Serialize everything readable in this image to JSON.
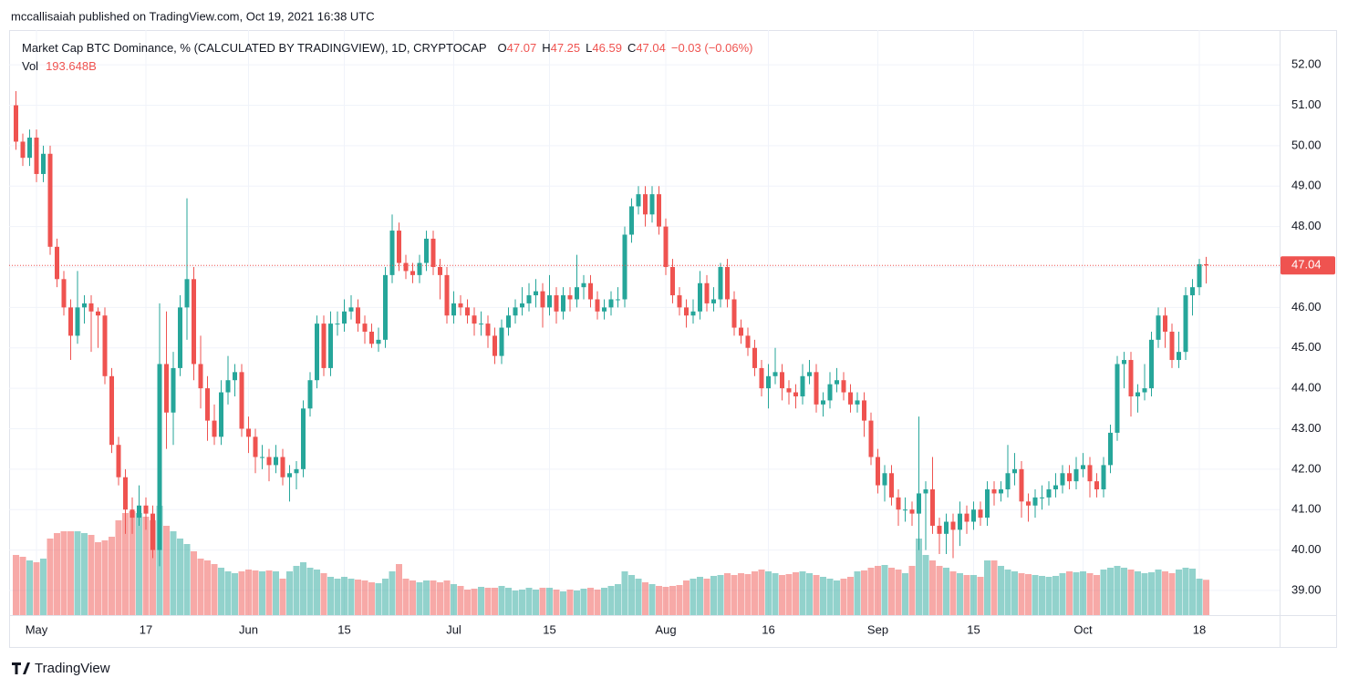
{
  "header": "mccallisaiah published on TradingView.com, Oct 19, 2021 16:38 UTC",
  "footer": "TradingView",
  "chart_data": {
    "type": "candlestick",
    "title": "Market Cap BTC Dominance, % (CALCULATED BY TRADINGVIEW), 1D, CRYPTOCAP",
    "ohlc_keys": [
      "O",
      "H",
      "L",
      "C"
    ],
    "change": "−0.03 (−0.06%)",
    "up_color": "#26a69a",
    "down_color": "#ef5350",
    "grid": true,
    "last_price_line": true,
    "xlim": [
      "2021-04-27",
      "2021-10-30"
    ],
    "ylim": [
      38.39,
      52.86
    ],
    "yticks": [
      {
        "value": 39,
        "label": "39.00"
      },
      {
        "value": 40,
        "label": "40.00"
      },
      {
        "value": 41,
        "label": "41.00"
      },
      {
        "value": 42,
        "label": "42.00"
      },
      {
        "value": 43,
        "label": "43.00"
      },
      {
        "value": 44,
        "label": "44.00"
      },
      {
        "value": 45,
        "label": "45.00"
      },
      {
        "value": 46,
        "label": "46.00"
      },
      {
        "value": 47,
        "label": "47.00"
      },
      {
        "value": 48,
        "label": "48.00"
      },
      {
        "value": 49,
        "label": "49.00"
      },
      {
        "value": 50,
        "label": "50.00"
      },
      {
        "value": 51,
        "label": "51.00"
      },
      {
        "value": 52,
        "label": "52.00"
      }
    ],
    "xticks": [
      {
        "value": "2021-05-01",
        "label": "May"
      },
      {
        "value": "2021-05-17",
        "label": "17"
      },
      {
        "value": "2021-06-01",
        "label": "Jun"
      },
      {
        "value": "2021-06-15",
        "label": "15"
      },
      {
        "value": "2021-07-01",
        "label": "Jul"
      },
      {
        "value": "2021-07-15",
        "label": "15"
      },
      {
        "value": "2021-08-01",
        "label": "Aug"
      },
      {
        "value": "2021-08-16",
        "label": "16"
      },
      {
        "value": "2021-09-01",
        "label": "Sep"
      },
      {
        "value": "2021-09-15",
        "label": "15"
      },
      {
        "value": "2021-10-01",
        "label": "Oct"
      },
      {
        "value": "2021-10-18",
        "label": "18"
      }
    ],
    "x": [
      "2021-04-28",
      "2021-04-29",
      "2021-04-30",
      "2021-05-01",
      "2021-05-02",
      "2021-05-03",
      "2021-05-04",
      "2021-05-05",
      "2021-05-06",
      "2021-05-07",
      "2021-05-08",
      "2021-05-09",
      "2021-05-10",
      "2021-05-11",
      "2021-05-12",
      "2021-05-13",
      "2021-05-14",
      "2021-05-15",
      "2021-05-16",
      "2021-05-17",
      "2021-05-18",
      "2021-05-19",
      "2021-05-20",
      "2021-05-21",
      "2021-05-22",
      "2021-05-23",
      "2021-05-24",
      "2021-05-25",
      "2021-05-26",
      "2021-05-27",
      "2021-05-28",
      "2021-05-29",
      "2021-05-30",
      "2021-05-31",
      "2021-06-01",
      "2021-06-02",
      "2021-06-03",
      "2021-06-04",
      "2021-06-05",
      "2021-06-06",
      "2021-06-07",
      "2021-06-08",
      "2021-06-09",
      "2021-06-10",
      "2021-06-11",
      "2021-06-12",
      "2021-06-13",
      "2021-06-14",
      "2021-06-15",
      "2021-06-16",
      "2021-06-17",
      "2021-06-18",
      "2021-06-19",
      "2021-06-20",
      "2021-06-21",
      "2021-06-22",
      "2021-06-23",
      "2021-06-24",
      "2021-06-25",
      "2021-06-26",
      "2021-06-27",
      "2021-06-28",
      "2021-06-29",
      "2021-06-30",
      "2021-07-01",
      "2021-07-02",
      "2021-07-03",
      "2021-07-04",
      "2021-07-05",
      "2021-07-06",
      "2021-07-07",
      "2021-07-08",
      "2021-07-09",
      "2021-07-10",
      "2021-07-11",
      "2021-07-12",
      "2021-07-13",
      "2021-07-14",
      "2021-07-15",
      "2021-07-16",
      "2021-07-17",
      "2021-07-18",
      "2021-07-19",
      "2021-07-20",
      "2021-07-21",
      "2021-07-22",
      "2021-07-23",
      "2021-07-24",
      "2021-07-25",
      "2021-07-26",
      "2021-07-27",
      "2021-07-28",
      "2021-07-29",
      "2021-07-30",
      "2021-07-31",
      "2021-08-01",
      "2021-08-02",
      "2021-08-03",
      "2021-08-04",
      "2021-08-05",
      "2021-08-06",
      "2021-08-07",
      "2021-08-08",
      "2021-08-09",
      "2021-08-10",
      "2021-08-11",
      "2021-08-12",
      "2021-08-13",
      "2021-08-14",
      "2021-08-15",
      "2021-08-16",
      "2021-08-17",
      "2021-08-18",
      "2021-08-19",
      "2021-08-20",
      "2021-08-21",
      "2021-08-22",
      "2021-08-23",
      "2021-08-24",
      "2021-08-25",
      "2021-08-26",
      "2021-08-27",
      "2021-08-28",
      "2021-08-29",
      "2021-08-30",
      "2021-08-31",
      "2021-09-01",
      "2021-09-02",
      "2021-09-03",
      "2021-09-04",
      "2021-09-05",
      "2021-09-06",
      "2021-09-07",
      "2021-09-08",
      "2021-09-09",
      "2021-09-10",
      "2021-09-11",
      "2021-09-12",
      "2021-09-13",
      "2021-09-14",
      "2021-09-15",
      "2021-09-16",
      "2021-09-17",
      "2021-09-18",
      "2021-09-19",
      "2021-09-20",
      "2021-09-21",
      "2021-09-22",
      "2021-09-23",
      "2021-09-24",
      "2021-09-25",
      "2021-09-26",
      "2021-09-27",
      "2021-09-28",
      "2021-09-29",
      "2021-09-30",
      "2021-10-01",
      "2021-10-02",
      "2021-10-03",
      "2021-10-04",
      "2021-10-05",
      "2021-10-06",
      "2021-10-07",
      "2021-10-08",
      "2021-10-09",
      "2021-10-10",
      "2021-10-11",
      "2021-10-12",
      "2021-10-13",
      "2021-10-14",
      "2021-10-15",
      "2021-10-16",
      "2021-10-17",
      "2021-10-18",
      "2021-10-19"
    ],
    "open": [
      51.0,
      50.1,
      49.7,
      50.2,
      49.3,
      49.8,
      47.5,
      46.7,
      46.0,
      45.3,
      46.0,
      46.1,
      45.9,
      45.8,
      44.3,
      42.6,
      41.8,
      41.0,
      40.8,
      41.1,
      40.9,
      40.0,
      44.6,
      43.4,
      44.5,
      46.0,
      46.7,
      44.6,
      44.0,
      43.2,
      42.8,
      43.9,
      44.2,
      44.4,
      43.0,
      42.8,
      42.3,
      42.3,
      42.1,
      42.3,
      41.8,
      41.9,
      42.0,
      43.5,
      44.2,
      45.6,
      44.5,
      45.6,
      45.6,
      45.9,
      46.0,
      45.6,
      45.4,
      45.1,
      45.2,
      46.8,
      47.9,
      47.1,
      46.9,
      46.8,
      47.1,
      47.7,
      47.0,
      46.8,
      45.8,
      46.1,
      46.0,
      45.8,
      45.6,
      45.6,
      45.3,
      44.8,
      45.5,
      45.8,
      46.0,
      46.1,
      46.3,
      46.4,
      46.0,
      46.3,
      45.9,
      46.3,
      46.2,
      46.5,
      46.6,
      46.2,
      45.9,
      46.0,
      46.2,
      46.2,
      47.8,
      48.5,
      48.8,
      48.3,
      48.8,
      48.0,
      47.0,
      46.3,
      46.0,
      45.8,
      45.9,
      46.6,
      46.1,
      46.2,
      47.0,
      46.2,
      45.5,
      45.3,
      45.0,
      44.5,
      44.0,
      44.3,
      44.4,
      44.0,
      43.9,
      43.8,
      44.3,
      44.4,
      43.6,
      43.7,
      44.1,
      44.2,
      43.9,
      43.6,
      43.7,
      43.2,
      42.3,
      41.6,
      41.9,
      41.3,
      41.0,
      41.0,
      40.9,
      41.4,
      41.5,
      40.6,
      40.4,
      40.7,
      40.5,
      40.9,
      40.7,
      41.0,
      40.8,
      41.5,
      41.4,
      41.5,
      41.9,
      42.0,
      41.2,
      41.1,
      41.3,
      41.3,
      41.5,
      41.6,
      41.9,
      41.7,
      42.0,
      42.1,
      41.7,
      41.5,
      42.1,
      42.9,
      44.6,
      44.7,
      43.8,
      43.9,
      44.0,
      45.2,
      45.8,
      45.4,
      44.7,
      44.9,
      46.3,
      46.5,
      47.07
    ],
    "high": [
      51.35,
      50.3,
      50.4,
      50.4,
      50.0,
      50.0,
      47.7,
      46.9,
      46.2,
      46.9,
      46.3,
      46.3,
      46.0,
      46.0,
      44.5,
      42.8,
      42.0,
      41.3,
      41.6,
      41.3,
      41.1,
      46.1,
      45.9,
      44.9,
      46.3,
      48.7,
      47.0,
      45.3,
      44.3,
      43.6,
      44.2,
      44.8,
      44.6,
      44.6,
      43.3,
      43.0,
      42.6,
      42.5,
      42.6,
      42.5,
      42.1,
      42.2,
      43.7,
      44.4,
      45.8,
      45.8,
      45.9,
      45.9,
      46.2,
      46.3,
      46.2,
      45.8,
      45.6,
      45.5,
      47.0,
      48.3,
      48.1,
      47.3,
      47.1,
      47.3,
      47.9,
      47.9,
      47.2,
      47.0,
      46.4,
      46.3,
      46.2,
      46.0,
      45.9,
      45.8,
      45.5,
      45.7,
      46.0,
      46.2,
      46.5,
      46.6,
      46.7,
      46.6,
      46.8,
      46.5,
      46.5,
      46.5,
      47.3,
      46.8,
      46.8,
      46.4,
      46.2,
      46.4,
      46.5,
      48.0,
      48.7,
      49.0,
      49.0,
      49.0,
      49.0,
      48.2,
      47.2,
      46.5,
      46.2,
      46.2,
      46.9,
      46.8,
      46.5,
      47.1,
      47.2,
      46.4,
      45.7,
      45.5,
      45.2,
      44.7,
      44.6,
      45.0,
      44.6,
      44.2,
      44.1,
      44.6,
      44.7,
      44.6,
      43.9,
      44.4,
      44.5,
      44.4,
      44.1,
      43.9,
      43.9,
      43.4,
      42.5,
      42.1,
      42.1,
      41.5,
      41.3,
      41.2,
      43.3,
      41.7,
      42.3,
      40.8,
      40.9,
      40.9,
      41.2,
      41.1,
      41.2,
      41.2,
      41.7,
      41.7,
      41.7,
      42.6,
      42.4,
      42.2,
      41.4,
      41.5,
      41.6,
      41.7,
      41.9,
      42.1,
      42.1,
      42.3,
      42.4,
      42.3,
      41.9,
      42.3,
      43.1,
      44.8,
      44.9,
      44.9,
      44.1,
      44.6,
      45.4,
      46.0,
      46.0,
      45.6,
      45.4,
      46.5,
      46.7,
      47.2,
      47.25
    ],
    "low": [
      49.9,
      49.5,
      49.5,
      49.1,
      49.1,
      47.3,
      46.5,
      45.8,
      44.7,
      45.1,
      45.6,
      44.9,
      45.0,
      44.1,
      42.4,
      41.6,
      40.4,
      40.4,
      40.6,
      40.5,
      39.8,
      39.6,
      42.5,
      42.6,
      44.3,
      45.2,
      44.2,
      43.5,
      42.7,
      42.6,
      42.6,
      43.6,
      43.8,
      42.8,
      42.4,
      41.9,
      42.0,
      41.7,
      41.9,
      41.6,
      41.2,
      41.5,
      41.8,
      43.3,
      44.0,
      44.3,
      44.3,
      45.3,
      45.4,
      45.7,
      45.4,
      45.1,
      45.0,
      44.9,
      45.0,
      46.6,
      46.9,
      46.7,
      46.6,
      46.6,
      46.9,
      46.8,
      46.2,
      45.6,
      45.6,
      45.8,
      45.6,
      45.3,
      45.3,
      45.0,
      44.6,
      44.6,
      45.3,
      45.6,
      45.8,
      45.9,
      46.0,
      45.5,
      45.8,
      45.6,
      45.7,
      45.9,
      46.0,
      46.2,
      46.0,
      45.7,
      45.7,
      45.8,
      46.0,
      46.0,
      47.6,
      48.3,
      48.0,
      48.1,
      47.8,
      46.8,
      46.1,
      45.8,
      45.5,
      45.6,
      45.7,
      45.9,
      45.9,
      46.0,
      46.0,
      45.3,
      45.1,
      44.8,
      44.3,
      43.8,
      43.5,
      44.1,
      43.7,
      43.6,
      43.5,
      43.6,
      44.1,
      43.4,
      43.3,
      43.5,
      43.9,
      43.7,
      43.4,
      43.4,
      42.8,
      42.1,
      41.4,
      41.2,
      41.1,
      40.6,
      40.7,
      40.6,
      40.0,
      40.0,
      40.4,
      39.9,
      39.9,
      39.8,
      40.1,
      40.4,
      40.5,
      40.6,
      40.6,
      41.1,
      41.2,
      41.3,
      41.6,
      40.8,
      40.7,
      40.8,
      41.0,
      41.1,
      41.3,
      41.4,
      41.5,
      41.5,
      41.8,
      41.3,
      41.3,
      41.3,
      41.9,
      42.7,
      44.0,
      43.3,
      43.4,
      43.7,
      43.8,
      45.0,
      45.0,
      44.5,
      44.5,
      44.7,
      45.8,
      46.3,
      46.59
    ],
    "close": [
      50.1,
      49.7,
      50.2,
      49.3,
      49.8,
      47.5,
      46.7,
      46.0,
      45.3,
      46.0,
      46.1,
      45.9,
      45.8,
      44.3,
      42.6,
      41.8,
      41.0,
      40.8,
      41.1,
      40.9,
      40.0,
      44.6,
      43.4,
      44.5,
      46.0,
      46.7,
      44.6,
      44.0,
      43.2,
      42.8,
      43.9,
      44.2,
      44.4,
      43.0,
      42.8,
      42.3,
      42.3,
      42.1,
      42.3,
      41.8,
      41.9,
      42.0,
      43.5,
      44.2,
      45.6,
      44.5,
      45.6,
      45.6,
      45.9,
      46.0,
      45.6,
      45.4,
      45.1,
      45.2,
      46.8,
      47.9,
      47.1,
      46.9,
      46.8,
      47.1,
      47.7,
      47.0,
      46.8,
      45.8,
      46.1,
      46.0,
      45.8,
      45.6,
      45.6,
      45.3,
      44.8,
      45.5,
      45.8,
      46.0,
      46.1,
      46.3,
      46.4,
      46.0,
      46.3,
      45.9,
      46.3,
      46.2,
      46.5,
      46.6,
      46.2,
      45.9,
      46.0,
      46.2,
      46.2,
      47.8,
      48.5,
      48.8,
      48.3,
      48.8,
      48.0,
      47.0,
      46.3,
      46.0,
      45.8,
      45.9,
      46.6,
      46.1,
      46.2,
      47.0,
      46.2,
      45.5,
      45.3,
      45.0,
      44.5,
      44.0,
      44.3,
      44.4,
      44.0,
      43.9,
      43.8,
      44.3,
      44.4,
      43.6,
      43.7,
      44.1,
      44.2,
      43.9,
      43.6,
      43.7,
      43.2,
      42.3,
      41.6,
      41.9,
      41.3,
      41.0,
      41.0,
      40.9,
      41.4,
      41.5,
      40.6,
      40.4,
      40.7,
      40.5,
      40.9,
      40.7,
      41.0,
      40.8,
      41.5,
      41.4,
      41.5,
      41.9,
      42.0,
      41.2,
      41.1,
      41.3,
      41.3,
      41.5,
      41.6,
      41.9,
      41.7,
      42.0,
      42.1,
      41.7,
      41.5,
      42.1,
      42.9,
      44.6,
      44.7,
      43.8,
      43.9,
      44.0,
      45.2,
      45.8,
      45.4,
      44.7,
      44.9,
      46.3,
      46.5,
      47.07,
      47.04
    ],
    "volume": {
      "name": "Vol",
      "value_label": "193.648B",
      "values": [
        330,
        320,
        300,
        290,
        310,
        420,
        450,
        460,
        460,
        460,
        450,
        440,
        400,
        410,
        430,
        520,
        560,
        570,
        560,
        540,
        520,
        600,
        490,
        460,
        420,
        390,
        350,
        310,
        300,
        280,
        260,
        240,
        230,
        240,
        250,
        245,
        240,
        245,
        240,
        200,
        240,
        270,
        290,
        260,
        250,
        230,
        210,
        200,
        210,
        200,
        195,
        190,
        180,
        175,
        200,
        240,
        280,
        200,
        190,
        180,
        190,
        190,
        180,
        190,
        170,
        160,
        140,
        145,
        155,
        150,
        150,
        160,
        150,
        135,
        140,
        150,
        140,
        150,
        150,
        140,
        130,
        140,
        135,
        145,
        150,
        140,
        150,
        160,
        170,
        240,
        220,
        200,
        180,
        170,
        160,
        155,
        160,
        165,
        190,
        200,
        210,
        200,
        215,
        220,
        230,
        220,
        230,
        225,
        240,
        250,
        240,
        230,
        220,
        225,
        235,
        240,
        230,
        220,
        210,
        200,
        190,
        200,
        210,
        240,
        245,
        260,
        270,
        275,
        260,
        250,
        230,
        270,
        420,
        330,
        300,
        270,
        260,
        240,
        230,
        220,
        220,
        210,
        300,
        300,
        270,
        250,
        240,
        230,
        225,
        220,
        215,
        210,
        215,
        230,
        240,
        235,
        240,
        230,
        220,
        250,
        260,
        270,
        260,
        250,
        240,
        230,
        235,
        250,
        240,
        230,
        250,
        260,
        255,
        200,
        193.648
      ]
    }
  }
}
